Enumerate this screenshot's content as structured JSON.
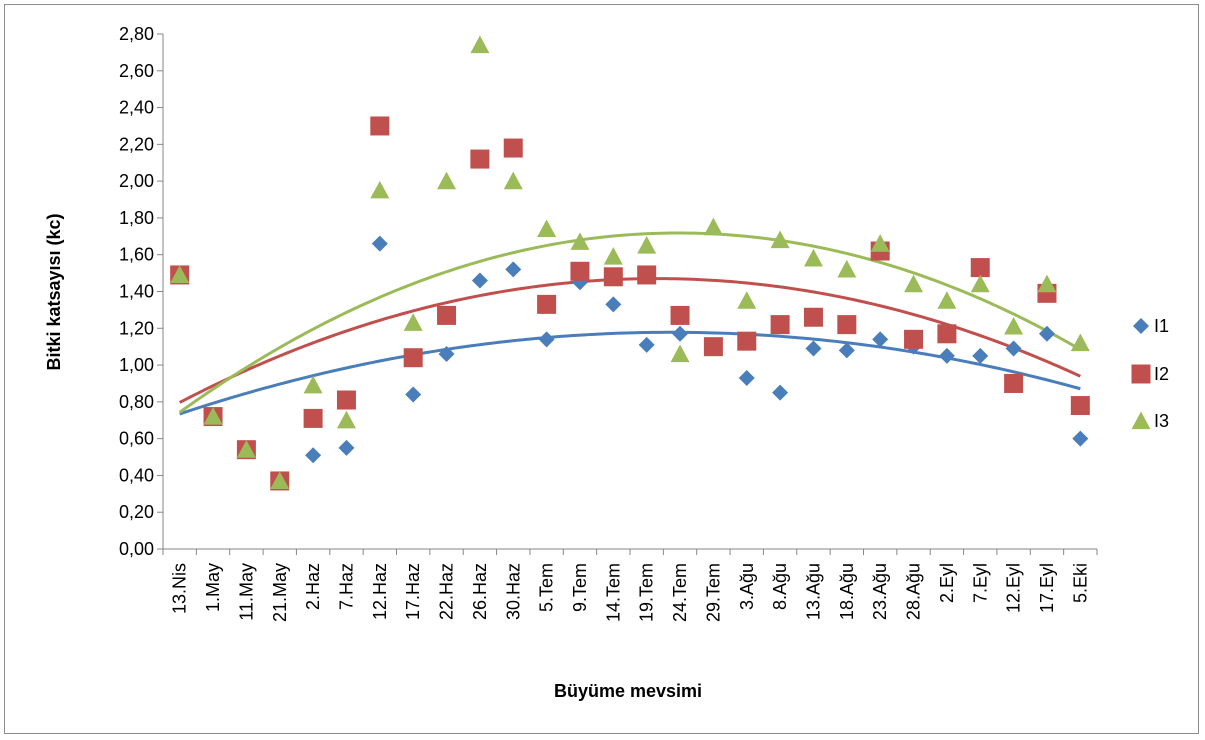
{
  "chart_data": {
    "type": "scatter",
    "title": "",
    "xlabel": "Büyüme mevsimi",
    "ylabel": "Bitki katsayısı (kc)",
    "ylim": [
      0,
      2.8
    ],
    "y_ticks": [
      "0,00",
      "0,20",
      "0,40",
      "0,60",
      "0,80",
      "1,00",
      "1,20",
      "1,40",
      "1,60",
      "1,80",
      "2,00",
      "2,20",
      "2,40",
      "2,60",
      "2,80"
    ],
    "categories": [
      "13.Nis",
      "1.May",
      "11.May",
      "21.May",
      "2.Haz",
      "7.Haz",
      "12.Haz",
      "17.Haz",
      "22.Haz",
      "26.Haz",
      "30.Haz",
      "5.Tem",
      "9.Tem",
      "14.Tem",
      "19.Tem",
      "24.Tem",
      "29.Tem",
      "3.Ağu",
      "8.Ağu",
      "13.Ağu",
      "18.Ağu",
      "23.Ağu",
      "28.Ağu",
      "2.Eyl",
      "7.Eyl",
      "12.Eyl",
      "17.Eyl",
      "5.Eki"
    ],
    "grid": false,
    "legend_position": "right",
    "trendline": "polynomial order 2",
    "series": [
      {
        "name": "I1",
        "marker": "diamond",
        "color": "#4a7ebb",
        "values": [
          1.49,
          0.72,
          0.54,
          0.37,
          0.51,
          0.55,
          1.66,
          0.84,
          1.06,
          1.46,
          1.52,
          1.14,
          1.45,
          1.33,
          1.11,
          1.17,
          1.1,
          0.93,
          0.85,
          1.09,
          1.08,
          1.14,
          1.1,
          1.05,
          1.05,
          1.09,
          1.17,
          0.6
        ]
      },
      {
        "name": "I2",
        "marker": "square",
        "color": "#c0504d",
        "values": [
          1.49,
          0.72,
          0.54,
          0.37,
          0.71,
          0.81,
          2.3,
          1.04,
          1.27,
          2.12,
          2.18,
          1.33,
          1.51,
          1.48,
          1.49,
          1.27,
          1.1,
          1.13,
          1.22,
          1.26,
          1.22,
          1.62,
          1.14,
          1.17,
          1.53,
          0.9,
          1.39,
          0.78
        ]
      },
      {
        "name": "I3",
        "marker": "triangle",
        "color": "#9bbb59",
        "values": [
          1.49,
          0.72,
          0.54,
          0.37,
          0.89,
          0.7,
          1.95,
          1.23,
          2.0,
          2.74,
          2.0,
          1.74,
          1.67,
          1.59,
          1.65,
          1.06,
          1.75,
          1.35,
          1.68,
          1.58,
          1.52,
          1.66,
          1.44,
          1.35,
          1.44,
          1.21,
          1.44,
          1.12
        ]
      }
    ]
  }
}
